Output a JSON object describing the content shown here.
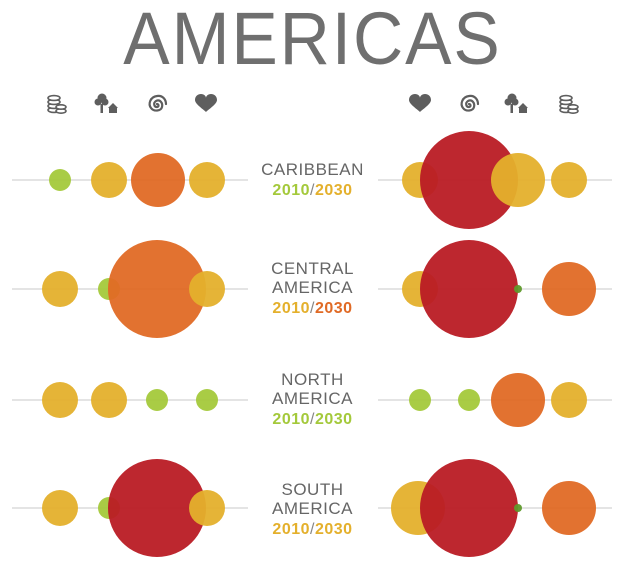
{
  "title": "AMERICAS",
  "colors": {
    "green": "#a4c93b",
    "yellow": "#e4b02c",
    "orange": "#e06a25",
    "red": "#b91b24",
    "icon": "#5e5e5e",
    "axis": "#c9c9c9"
  },
  "icons": {
    "left": [
      "coins-icon",
      "tree-house-icon",
      "spiral-icon",
      "heart-icon"
    ],
    "right": [
      "heart-icon",
      "spiral-icon",
      "tree-house-icon",
      "coins-icon"
    ]
  },
  "regions": [
    {
      "name": "CARIBBEAN",
      "year_a": "2010",
      "separator": "/",
      "year_b": "2030",
      "year_a_color": "#a4c93b",
      "year_b_color": "#e4b02c",
      "left": [
        {
          "size": "small",
          "color": "#a4c93b"
        },
        {
          "size": "medium",
          "color": "#e4b02c"
        },
        {
          "size": "large",
          "color": "#e06a25"
        },
        {
          "size": "medium",
          "color": "#e4b02c"
        }
      ],
      "right": [
        {
          "size": "medium",
          "color": "#e4b02c"
        },
        {
          "size": "xlarge",
          "color": "#b91b24"
        },
        {
          "size": "large",
          "color": "#e4b02c"
        },
        {
          "size": "medium",
          "color": "#e4b02c"
        }
      ]
    },
    {
      "name": "CENTRAL\nAMERICA",
      "year_a": "2010",
      "separator": "/",
      "year_b": "2030",
      "year_a_color": "#e4b02c",
      "year_b_color": "#e06a25",
      "left": [
        {
          "size": "medium",
          "color": "#e4b02c"
        },
        {
          "size": "small",
          "color": "#a4c93b"
        },
        {
          "size": "xlarge",
          "color": "#e06a25"
        },
        {
          "size": "medium",
          "color": "#e4b02c"
        }
      ],
      "right": [
        {
          "size": "medium",
          "color": "#e4b02c"
        },
        {
          "size": "xlarge",
          "color": "#b91b24"
        },
        {
          "size": "tiny",
          "color": "#5f9a2c"
        },
        {
          "size": "large",
          "color": "#e06a25"
        }
      ]
    },
    {
      "name": "NORTH\nAMERICA",
      "year_a": "2010",
      "separator": "/",
      "year_b": "2030",
      "year_a_color": "#a4c93b",
      "year_b_color": "#a4c93b",
      "left": [
        {
          "size": "medium",
          "color": "#e4b02c"
        },
        {
          "size": "medium",
          "color": "#e4b02c"
        },
        {
          "size": "small",
          "color": "#a4c93b"
        },
        {
          "size": "small",
          "color": "#a4c93b"
        }
      ],
      "right": [
        {
          "size": "small",
          "color": "#a4c93b"
        },
        {
          "size": "small",
          "color": "#a4c93b"
        },
        {
          "size": "large",
          "color": "#e06a25"
        },
        {
          "size": "medium",
          "color": "#e4b02c"
        }
      ]
    },
    {
      "name": "SOUTH\nAMERICA",
      "year_a": "2010",
      "separator": "/",
      "year_b": "2030",
      "year_a_color": "#e4b02c",
      "year_b_color": "#e4b02c",
      "left": [
        {
          "size": "medium",
          "color": "#e4b02c"
        },
        {
          "size": "small",
          "color": "#a4c93b"
        },
        {
          "size": "xlarge",
          "color": "#b91b24"
        },
        {
          "size": "medium",
          "color": "#e4b02c"
        }
      ],
      "right": [
        {
          "size": "large",
          "color": "#e4b02c"
        },
        {
          "size": "xlarge",
          "color": "#b91b24"
        },
        {
          "size": "tiny",
          "color": "#5f9a2c"
        },
        {
          "size": "large",
          "color": "#e06a25"
        }
      ]
    }
  ]
}
